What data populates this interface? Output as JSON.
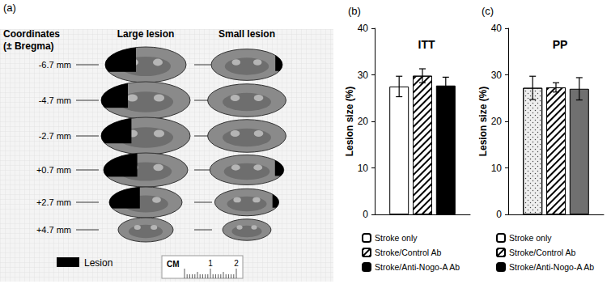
{
  "panel_a": {
    "label": "(a)",
    "coordinates_title": [
      "Coordinates",
      "(± Bregma)"
    ],
    "columns": [
      "Large lesion",
      "Small lesion"
    ],
    "coordinates": [
      "-6.7 mm",
      "-4.7 mm",
      "-2.7 mm",
      "+0.7 mm",
      "+2.7 mm",
      "+4.7 mm"
    ],
    "legend": "Lesion",
    "scale": {
      "unit": "CM",
      "ticks": [
        1,
        2
      ]
    }
  },
  "chart_data": [
    {
      "type": "bar",
      "panel_label": "(b)",
      "title": "ITT",
      "y_label": "Lesion size (%)",
      "categories": [
        null
      ],
      "ylim": [
        0,
        40
      ],
      "yticks": [
        0,
        10,
        20,
        30,
        40
      ],
      "tick_labels": "y",
      "legend": "bottom",
      "series": [
        {
          "name": "Stroke only",
          "color": "#ffffff",
          "values": [
            27.5
          ],
          "errors": [
            2.2
          ]
        },
        {
          "name": "Stroke/Control Ab",
          "color": "#ffffff",
          "marker": "hatch",
          "values": [
            29.8
          ],
          "errors": [
            1.5
          ]
        },
        {
          "name": "Stroke/Anti-Nogo-A Ab",
          "color": "#000000",
          "values": [
            27.7
          ],
          "errors": [
            1.8
          ]
        }
      ]
    },
    {
      "type": "bar",
      "panel_label": "(c)",
      "title": "PP",
      "y_label": "Lesion size (%)",
      "categories": [
        null
      ],
      "ylim": [
        0,
        40
      ],
      "yticks": [
        0,
        10,
        20,
        30,
        40
      ],
      "tick_labels": "y",
      "legend": "bottom",
      "series": [
        {
          "name": "Stroke only",
          "color": "#eeeeee",
          "marker": "dots",
          "values": [
            27.2
          ],
          "errors": [
            2.5
          ]
        },
        {
          "name": "Stroke/Control Ab",
          "color": "#ffffff",
          "marker": "hatch",
          "values": [
            27.3
          ],
          "errors": [
            1.0
          ]
        },
        {
          "name": "Stroke/Anti-Nogo-A Ab",
          "color": "#707070",
          "values": [
            27.0
          ],
          "errors": [
            2.4
          ]
        }
      ]
    }
  ]
}
